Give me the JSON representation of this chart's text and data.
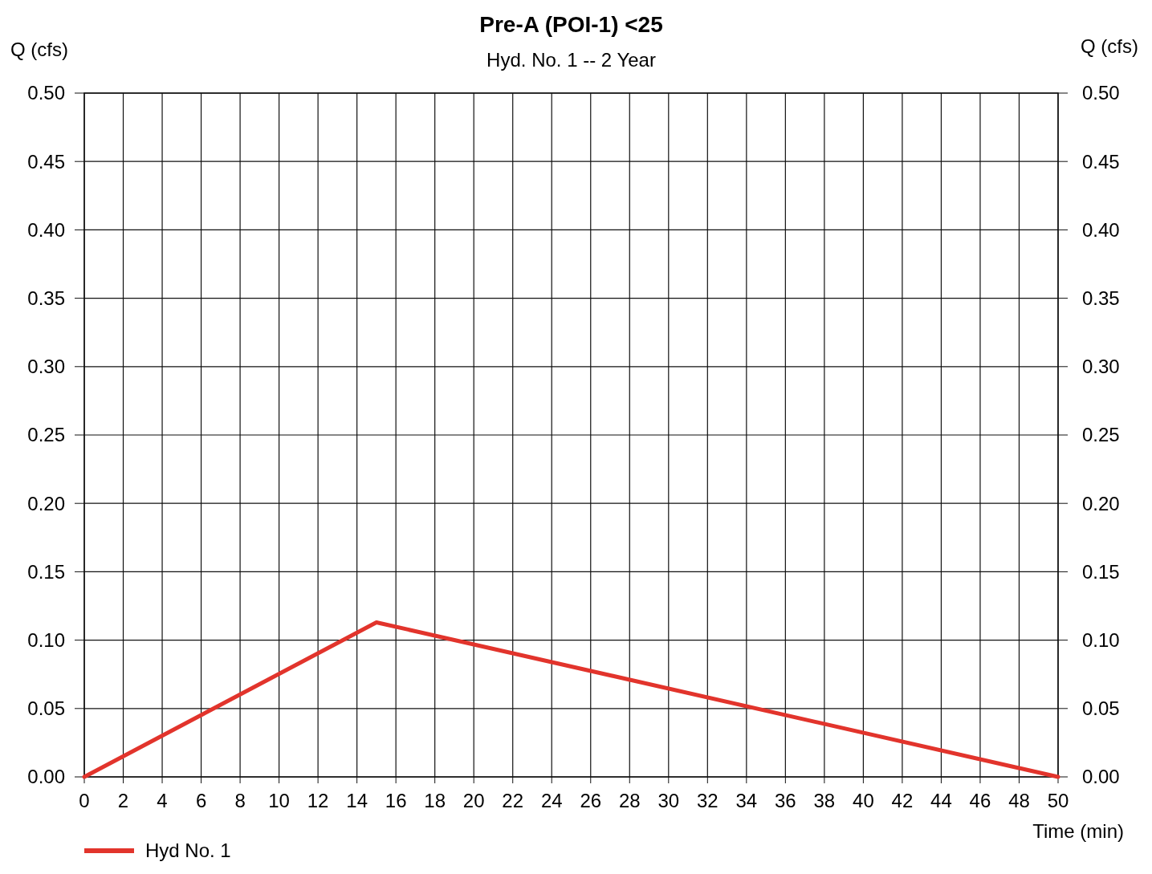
{
  "chart_data": {
    "type": "line",
    "title": "Pre-A (POI-1) <25",
    "subtitle": "Hyd. No. 1 -- 2 Year",
    "xlabel": "Time (min)",
    "ylabel": "Q (cfs)",
    "y2label": "Q (cfs)",
    "x": [
      0,
      15,
      50
    ],
    "series": [
      {
        "name": "Hyd No. 1",
        "color": "#e2342c",
        "values": [
          0,
          0.113,
          0
        ]
      }
    ],
    "xlim": [
      0,
      50
    ],
    "xticks": [
      0,
      2,
      4,
      6,
      8,
      10,
      12,
      14,
      16,
      18,
      20,
      22,
      24,
      26,
      28,
      30,
      32,
      34,
      36,
      38,
      40,
      42,
      44,
      46,
      48,
      50
    ],
    "ylim": [
      0,
      0.5
    ],
    "yticks": [
      {
        "value": 0,
        "label": "0.00"
      },
      {
        "value": 0.05,
        "label": "0.05"
      },
      {
        "value": 0.1,
        "label": "0.10"
      },
      {
        "value": 0.15,
        "label": "0.15"
      },
      {
        "value": 0.2,
        "label": "0.20"
      },
      {
        "value": 0.25,
        "label": "0.25"
      },
      {
        "value": 0.3,
        "label": "0.30"
      },
      {
        "value": 0.35,
        "label": "0.35"
      },
      {
        "value": 0.4,
        "label": "0.40"
      },
      {
        "value": 0.45,
        "label": "0.45"
      },
      {
        "value": 0.5,
        "label": "0.50"
      }
    ],
    "y2lim": [
      0,
      0.5
    ],
    "y2ticks": [
      {
        "value": 0,
        "label": "0.00"
      },
      {
        "value": 0.05,
        "label": "0.05"
      },
      {
        "value": 0.1,
        "label": "0.10"
      },
      {
        "value": 0.15,
        "label": "0.15"
      },
      {
        "value": 0.2,
        "label": "0.20"
      },
      {
        "value": 0.25,
        "label": "0.25"
      },
      {
        "value": 0.3,
        "label": "0.30"
      },
      {
        "value": 0.35,
        "label": "0.35"
      },
      {
        "value": 0.4,
        "label": "0.40"
      },
      {
        "value": 0.45,
        "label": "0.45"
      },
      {
        "value": 0.5,
        "label": "0.50"
      }
    ],
    "grid": true,
    "legend": "bottom left",
    "marker": "none",
    "line_style": "solid"
  }
}
